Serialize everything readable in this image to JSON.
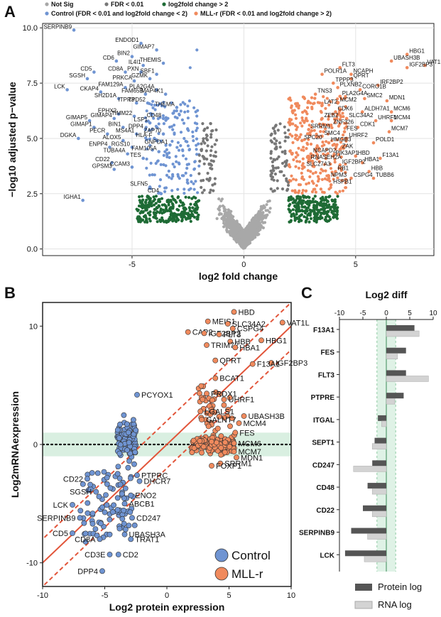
{
  "panels": {
    "a": "A",
    "b": "B",
    "c": "C"
  },
  "chart_data": [
    {
      "type": "scatter",
      "id": "volcano",
      "xlabel": "log2 fold change",
      "ylabel": "−log10 adjusted p−value",
      "xlim": [
        -9,
        8.5
      ],
      "ylim": [
        -0.3,
        10.2
      ],
      "xticks": [
        -5,
        0,
        5
      ],
      "yticks": [
        0.0,
        2.5,
        5.0,
        7.5,
        10.0
      ],
      "ytick_labels": [
        "0.0",
        "2.5",
        "5.0",
        "7.5",
        "10.0"
      ],
      "legend": [
        {
          "name": "Not Sig",
          "color": "#a8a8a8"
        },
        {
          "name": "FDR < 0.01",
          "color": "#777777"
        },
        {
          "name": "log2fold change > 2",
          "color": "#1e6b35"
        },
        {
          "name": "Control (FDR < 0.01 and log2fold change < 2)",
          "color": "#6f94d2"
        },
        {
          "name": "MLL-r (FDR < 0.01 and log2fold change > 2)",
          "color": "#f08a5d"
        }
      ],
      "labeled_points": [
        {
          "label": "SERPINB9",
          "x": -7.6,
          "y": 9.9
        },
        {
          "label": "ENDOD1",
          "x": -4.6,
          "y": 9.3
        },
        {
          "label": "GIMAP7",
          "x": -3.9,
          "y": 9.0
        },
        {
          "label": "BIN2",
          "x": -5.0,
          "y": 8.7
        },
        {
          "label": "CD6",
          "x": -5.7,
          "y": 8.5
        },
        {
          "label": "IL4I1",
          "x": -4.5,
          "y": 8.3
        },
        {
          "label": "THEMIS",
          "x": -3.6,
          "y": 8.4
        },
        {
          "label": "CD5",
          "x": -6.7,
          "y": 8.0
        },
        {
          "label": "CD8A",
          "x": -5.3,
          "y": 8.0
        },
        {
          "label": "PXN",
          "x": -4.6,
          "y": 8.0
        },
        {
          "label": "SBF1",
          "x": -3.9,
          "y": 7.9
        },
        {
          "label": "GZMK",
          "x": -4.2,
          "y": 7.7
        },
        {
          "label": "SGSH",
          "x": -7.0,
          "y": 7.7
        },
        {
          "label": "PRKCA",
          "x": -4.9,
          "y": 7.6
        },
        {
          "label": "LCK",
          "x": -7.9,
          "y": 7.2
        },
        {
          "label": "FAM129A",
          "x": -5.3,
          "y": 7.3
        },
        {
          "label": "CKAP4",
          "x": -6.4,
          "y": 7.1
        },
        {
          "label": "PLA2G4A",
          "x": -3.9,
          "y": 7.2
        },
        {
          "label": "SH2D1A",
          "x": -5.6,
          "y": 6.8
        },
        {
          "label": "FAM65B",
          "x": -4.4,
          "y": 7.0
        },
        {
          "label": "MAP4K1",
          "x": -3.5,
          "y": 7.0
        },
        {
          "label": "ITPR3",
          "x": -4.8,
          "y": 6.6
        },
        {
          "label": "TPD52",
          "x": -4.3,
          "y": 6.6
        },
        {
          "label": "THEMA",
          "x": -3.0,
          "y": 6.4
        },
        {
          "label": "EPHX2",
          "x": -5.6,
          "y": 6.1
        },
        {
          "label": "TIMM22",
          "x": -4.9,
          "y": 6.0
        },
        {
          "label": "CD48",
          "x": -3.6,
          "y": 5.9
        },
        {
          "label": "GIMAP5",
          "x": -6.9,
          "y": 5.8
        },
        {
          "label": "GIMAP4",
          "x": -5.8,
          "y": 5.9
        },
        {
          "label": "LSP1",
          "x": -4.2,
          "y": 5.7
        },
        {
          "label": "GIMAP1",
          "x": -6.7,
          "y": 5.5
        },
        {
          "label": "BIN1",
          "x": -5.4,
          "y": 5.5
        },
        {
          "label": "DPP4",
          "x": -4.4,
          "y": 5.4
        },
        {
          "label": "PECR",
          "x": -6.1,
          "y": 5.2
        },
        {
          "label": "MS4A1",
          "x": -4.8,
          "y": 5.2
        },
        {
          "label": "ZAP70",
          "x": -3.6,
          "y": 5.2
        },
        {
          "label": "DGKA",
          "x": -7.4,
          "y": 5.0
        },
        {
          "label": "HLA-F",
          "x": -4.0,
          "y": 5.0
        },
        {
          "label": "ALOX5",
          "x": -5.4,
          "y": 4.9
        },
        {
          "label": "ENPP4",
          "x": -6.0,
          "y": 4.6
        },
        {
          "label": "RGS10",
          "x": -5.0,
          "y": 4.6
        },
        {
          "label": "GNPDA1",
          "x": -3.3,
          "y": 4.7
        },
        {
          "label": "TUBA4A",
          "x": -5.2,
          "y": 4.3
        },
        {
          "label": "FAM105A",
          "x": -3.8,
          "y": 4.4
        },
        {
          "label": "TES",
          "x": -4.5,
          "y": 4.1
        },
        {
          "label": "CD22",
          "x": -5.9,
          "y": 3.9
        },
        {
          "label": "CCAM3",
          "x": -5.0,
          "y": 3.7
        },
        {
          "label": "GPSM3",
          "x": -5.8,
          "y": 3.6
        },
        {
          "label": "SLFN5",
          "x": -4.2,
          "y": 2.8
        },
        {
          "label": "CD4",
          "x": -3.7,
          "y": 2.5
        },
        {
          "label": "IGHA1",
          "x": -7.2,
          "y": 2.2
        },
        {
          "label": "HBG1",
          "x": 7.3,
          "y": 8.8
        },
        {
          "label": "UBASH3B",
          "x": 6.6,
          "y": 8.5
        },
        {
          "label": "VAT1L",
          "x": 8.1,
          "y": 8.3
        },
        {
          "label": "IGF2BP3",
          "x": 7.3,
          "y": 8.2
        },
        {
          "label": "FLT3",
          "x": 4.3,
          "y": 8.2
        },
        {
          "label": "POLR1A",
          "x": 3.5,
          "y": 7.9
        },
        {
          "label": "NCAPH",
          "x": 4.8,
          "y": 7.9
        },
        {
          "label": "QPRT",
          "x": 4.8,
          "y": 7.7
        },
        {
          "label": "TPPP3",
          "x": 4.0,
          "y": 7.5
        },
        {
          "label": "IRF2BP2",
          "x": 6.0,
          "y": 7.4
        },
        {
          "label": "PLXNB2",
          "x": 4.2,
          "y": 7.3
        },
        {
          "label": "CORO1B",
          "x": 5.2,
          "y": 7.2
        },
        {
          "label": "TNS3",
          "x": 3.2,
          "y": 7.0
        },
        {
          "label": "PLA2G4A",
          "x": 4.3,
          "y": 6.9
        },
        {
          "label": "SMC2",
          "x": 5.4,
          "y": 6.8
        },
        {
          "label": "MDN1",
          "x": 6.4,
          "y": 6.7
        },
        {
          "label": "MCM2",
          "x": 4.2,
          "y": 6.6
        },
        {
          "label": "LAT2",
          "x": 3.5,
          "y": 6.5
        },
        {
          "label": "CDK6",
          "x": 4.1,
          "y": 6.2
        },
        {
          "label": "ALDH7A1",
          "x": 5.3,
          "y": 6.2
        },
        {
          "label": "MCM6",
          "x": 6.6,
          "y": 6.2
        },
        {
          "label": "ZEB2",
          "x": 3.5,
          "y": 5.9
        },
        {
          "label": "SLC34A2",
          "x": 4.6,
          "y": 5.9
        },
        {
          "label": "UHRF1",
          "x": 5.9,
          "y": 5.8
        },
        {
          "label": "MCM4",
          "x": 6.6,
          "y": 5.8
        },
        {
          "label": "ZNF326",
          "x": 3.9,
          "y": 5.6
        },
        {
          "label": "CDK1",
          "x": 5.1,
          "y": 5.5
        },
        {
          "label": "SRRM1",
          "x": 2.9,
          "y": 5.4
        },
        {
          "label": "FES",
          "x": 4.5,
          "y": 5.3
        },
        {
          "label": "MCM7",
          "x": 6.5,
          "y": 5.3
        },
        {
          "label": "SMC4",
          "x": 3.5,
          "y": 5.1
        },
        {
          "label": "UHRF2",
          "x": 4.6,
          "y": 5.0
        },
        {
          "label": "SPC20",
          "x": 2.6,
          "y": 4.9
        },
        {
          "label": "HMGB3",
          "x": 3.8,
          "y": 4.8
        },
        {
          "label": "POLD1",
          "x": 5.8,
          "y": 4.8
        },
        {
          "label": "ZAK",
          "x": 4.3,
          "y": 4.5
        },
        {
          "label": "NCAPD2",
          "x": 3.0,
          "y": 4.3
        },
        {
          "label": "PIK3AP1",
          "x": 4.0,
          "y": 4.2
        },
        {
          "label": "HBD",
          "x": 5.0,
          "y": 4.2
        },
        {
          "label": "F13A1",
          "x": 6.1,
          "y": 4.1
        },
        {
          "label": "RNASEH2A",
          "x": 2.9,
          "y": 4.0
        },
        {
          "label": "HBA1",
          "x": 5.3,
          "y": 3.9
        },
        {
          "label": "IGF2BP2",
          "x": 4.3,
          "y": 3.8
        },
        {
          "label": "SLC27A3",
          "x": 2.7,
          "y": 3.7
        },
        {
          "label": "RB1",
          "x": 4.1,
          "y": 3.5
        },
        {
          "label": "HBB",
          "x": 5.6,
          "y": 3.5
        },
        {
          "label": "NPM3",
          "x": 3.8,
          "y": 3.2
        },
        {
          "label": "CSPG4",
          "x": 4.8,
          "y": 3.2
        },
        {
          "label": "TUBB6",
          "x": 5.8,
          "y": 3.2
        },
        {
          "label": "HSPB1",
          "x": 3.9,
          "y": 2.9
        }
      ]
    },
    {
      "type": "scatter",
      "id": "protein-vs-rna",
      "xlabel": "Log2 protein expression",
      "ylabel": "Log2mRNAexpression",
      "xlim": [
        -10,
        10
      ],
      "ylim": [
        -12,
        12
      ],
      "xticks": [
        -10,
        -5,
        0,
        5,
        10
      ],
      "yticks": [
        -10,
        0,
        10
      ],
      "band": [
        -1,
        1
      ],
      "fit_line": {
        "slope": 1,
        "intercept": 0
      },
      "dashed_offsets": [
        -2,
        2
      ],
      "legend": [
        {
          "name": "Control",
          "color": "#6f94d2"
        },
        {
          "name": "MLL-r",
          "color": "#f08a5d"
        }
      ],
      "labeled_points": [
        {
          "label": "HBD",
          "group": "MLL-r",
          "x": 5.4,
          "y": 11.2
        },
        {
          "label": "MEIS1",
          "group": "MLL-r",
          "x": 3.3,
          "y": 10.4
        },
        {
          "label": "VAT1L",
          "group": "MLL-r",
          "x": 9.3,
          "y": 10.3
        },
        {
          "label": "SLC34A2",
          "group": "MLL-r",
          "x": 4.9,
          "y": 10.2
        },
        {
          "label": "CSPG4",
          "group": "MLL-r",
          "x": 5.3,
          "y": 9.8
        },
        {
          "label": "CAP2",
          "group": "MLL-r",
          "x": 1.7,
          "y": 9.5
        },
        {
          "label": "IGF2BP2",
          "group": "MLL-r",
          "x": 3.0,
          "y": 9.4
        },
        {
          "label": "FLT3",
          "group": "MLL-r",
          "x": 4.2,
          "y": 9.3
        },
        {
          "label": "HBG1",
          "group": "MLL-r",
          "x": 7.6,
          "y": 8.8
        },
        {
          "label": "HBB",
          "group": "MLL-r",
          "x": 5.1,
          "y": 8.7
        },
        {
          "label": "TRIM72",
          "group": "MLL-r",
          "x": 3.2,
          "y": 8.4
        },
        {
          "label": "HBA1",
          "group": "MLL-r",
          "x": 5.5,
          "y": 8.2
        },
        {
          "label": "IGF2BP3",
          "group": "MLL-r",
          "x": 8.4,
          "y": 6.9
        },
        {
          "label": "QPRT",
          "group": "MLL-r",
          "x": 3.9,
          "y": 7.1
        },
        {
          "label": "F13A1",
          "group": "MLL-r",
          "x": 6.9,
          "y": 6.8
        },
        {
          "label": "BCAT1",
          "group": "MLL-r",
          "x": 3.9,
          "y": 5.6
        },
        {
          "label": "PCYOX1",
          "group": "Control",
          "x": -2.4,
          "y": 4.2
        },
        {
          "label": "PRDX1",
          "group": "MLL-r",
          "x": 3.2,
          "y": 4.3
        },
        {
          "label": "UHRF1",
          "group": "MLL-r",
          "x": 4.6,
          "y": 3.8
        },
        {
          "label": "LGALS1",
          "group": "MLL-r",
          "x": 2.7,
          "y": 2.8
        },
        {
          "label": "UBASH3B",
          "group": "MLL-r",
          "x": 6.2,
          "y": 2.4
        },
        {
          "label": "GALNT7",
          "group": "MLL-r",
          "x": 2.8,
          "y": 2.1
        },
        {
          "label": "MCM4",
          "group": "MLL-r",
          "x": 5.8,
          "y": 1.8
        },
        {
          "label": "FES",
          "group": "MLL-r",
          "x": 5.5,
          "y": 1.0
        },
        {
          "label": "MCM6",
          "group": "MLL-r",
          "x": 5.4,
          "y": 0.1
        },
        {
          "label": "MCM7",
          "group": "MLL-r",
          "x": 5.4,
          "y": -0.6
        },
        {
          "label": "MDN1",
          "group": "MLL-r",
          "x": 5.6,
          "y": -1.1
        },
        {
          "label": "SRRM1",
          "group": "MLL-r",
          "x": 4.3,
          "y": -1.6
        },
        {
          "label": "FOXP1",
          "group": "MLL-r",
          "x": 3.6,
          "y": -1.8
        },
        {
          "label": "CD22",
          "group": "Control",
          "x": -6.4,
          "y": -2.9
        },
        {
          "label": "PTPRC",
          "group": "Control",
          "x": -2.4,
          "y": -2.6
        },
        {
          "label": "DHCR7",
          "group": "Control",
          "x": -2.2,
          "y": -3.1
        },
        {
          "label": "SGSH",
          "group": "Control",
          "x": -5.7,
          "y": -4.0
        },
        {
          "label": "ENO2",
          "group": "Control",
          "x": -2.9,
          "y": -4.3
        },
        {
          "label": "LCK",
          "group": "Control",
          "x": -7.6,
          "y": -5.1
        },
        {
          "label": "ABCB1",
          "group": "Control",
          "x": -3.4,
          "y": -5.0
        },
        {
          "label": "CD247",
          "group": "Control",
          "x": -2.8,
          "y": -6.2
        },
        {
          "label": "SERPINB9",
          "group": "Control",
          "x": -7.0,
          "y": -6.2
        },
        {
          "label": "CD5",
          "group": "Control",
          "x": -7.6,
          "y": -7.5
        },
        {
          "label": "UBASH3A",
          "group": "Control",
          "x": -3.4,
          "y": -7.6
        },
        {
          "label": "CD8A",
          "group": "Control",
          "x": -5.4,
          "y": -8.0
        },
        {
          "label": "TRAT1",
          "group": "Control",
          "x": -2.9,
          "y": -8.0
        },
        {
          "label": "CD3E",
          "group": "Control",
          "x": -4.6,
          "y": -9.3
        },
        {
          "label": "CD2",
          "group": "Control",
          "x": -3.9,
          "y": -9.3
        },
        {
          "label": "DPP4",
          "group": "Control",
          "x": -5.2,
          "y": -10.7
        }
      ]
    },
    {
      "type": "bar",
      "id": "log2-diff",
      "orientation": "horizontal",
      "title": "Log2 diff",
      "categories": [
        "F13A1",
        "FES",
        "FLT3",
        "PTPRE",
        "ITGAL",
        "SEPT1",
        "CD247",
        "CD48",
        "CD22",
        "SERPINB9",
        "LCK"
      ],
      "xlim": [
        -10,
        10
      ],
      "xticks": [
        -10,
        -5,
        0,
        5,
        10
      ],
      "band": [
        -2,
        2
      ],
      "series": [
        {
          "name": "Protein log",
          "color": "#555555",
          "values": [
            6.0,
            4.2,
            4.2,
            3.7,
            -1.8,
            -2.5,
            -3.0,
            -4.0,
            -5.0,
            -7.5,
            -8.8
          ]
        },
        {
          "name": "RNA log",
          "color": "#d3d3d3",
          "values": [
            7.0,
            2.4,
            9.0,
            1.8,
            -1.0,
            -3.0,
            -7.0,
            -3.0,
            -3.0,
            -4.0,
            -4.7
          ]
        }
      ]
    }
  ]
}
